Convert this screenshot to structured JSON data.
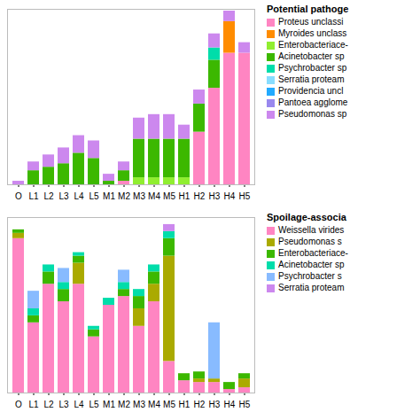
{
  "chart_data": [
    {
      "type": "bar",
      "stacked": true,
      "legend_title": "Potential pathoge",
      "legend": "right",
      "tick_labels": "x",
      "categories": [
        "O",
        "L1",
        "L2",
        "L3",
        "L4",
        "L5",
        "M1",
        "M2",
        "M3",
        "M4",
        "M5",
        "H1",
        "H2",
        "H3",
        "H4",
        "H5"
      ],
      "ylim": [
        0,
        1
      ],
      "series": [
        {
          "name": "Proteus unclassi",
          "color": "#FF85C2",
          "values": [
            0.0,
            0.0,
            0.0,
            0.0,
            0.0,
            0.0,
            0.0,
            0.02,
            0.0,
            0.0,
            0.0,
            0.0,
            0.3,
            0.55,
            0.75,
            0.75
          ]
        },
        {
          "name": "Myroides unclass",
          "color": "#FF8C00",
          "values": [
            0.0,
            0.0,
            0.0,
            0.0,
            0.0,
            0.0,
            0.0,
            0.0,
            0.0,
            0.0,
            0.0,
            0.0,
            0.0,
            0.0,
            0.18,
            0.0
          ]
        },
        {
          "name": "Enterobacteriace-",
          "color": "#90EE30",
          "values": [
            0.0,
            0.0,
            0.0,
            0.0,
            0.0,
            0.0,
            0.0,
            0.0,
            0.04,
            0.04,
            0.04,
            0.04,
            0.0,
            0.0,
            0.0,
            0.0
          ]
        },
        {
          "name": "Acinetobacter sp",
          "color": "#3CB800",
          "values": [
            0.0,
            0.08,
            0.1,
            0.12,
            0.18,
            0.15,
            0.02,
            0.06,
            0.22,
            0.22,
            0.22,
            0.22,
            0.16,
            0.16,
            0.0,
            0.0
          ]
        },
        {
          "name": "Psychrobacter sp",
          "color": "#00DDAA",
          "values": [
            0.0,
            0.0,
            0.0,
            0.0,
            0.0,
            0.0,
            0.0,
            0.0,
            0.0,
            0.0,
            0.0,
            0.0,
            0.0,
            0.07,
            0.0,
            0.0
          ]
        },
        {
          "name": "Serratia proteam",
          "color": "#88DDFF",
          "values": [
            0.0,
            0.0,
            0.0,
            0.0,
            0.0,
            0.0,
            0.0,
            0.0,
            0.0,
            0.0,
            0.0,
            0.0,
            0.0,
            0.0,
            0.0,
            0.0
          ]
        },
        {
          "name": "Providencia uncl",
          "color": "#22AAFF",
          "values": [
            0.0,
            0.0,
            0.0,
            0.0,
            0.0,
            0.0,
            0.0,
            0.0,
            0.0,
            0.0,
            0.0,
            0.0,
            0.0,
            0.0,
            0.0,
            0.0
          ]
        },
        {
          "name": "Pantoea agglome",
          "color": "#9988EE",
          "values": [
            0.0,
            0.0,
            0.0,
            0.0,
            0.0,
            0.0,
            0.0,
            0.0,
            0.0,
            0.0,
            0.0,
            0.0,
            0.0,
            0.0,
            0.0,
            0.0
          ]
        },
        {
          "name": "Pseudomonas sp",
          "color": "#CC88EE",
          "values": [
            0.02,
            0.05,
            0.07,
            0.09,
            0.1,
            0.1,
            0.04,
            0.05,
            0.12,
            0.14,
            0.14,
            0.08,
            0.08,
            0.08,
            0.06,
            0.06
          ]
        }
      ]
    },
    {
      "type": "bar",
      "stacked": true,
      "legend_title": "Spoilage-associa",
      "legend": "right",
      "tick_labels": "x",
      "categories": [
        "O",
        "L1",
        "L2",
        "L3",
        "L4",
        "L5",
        "M1",
        "M2",
        "M3",
        "M4",
        "M5",
        "H1",
        "H2",
        "H3",
        "H4",
        "H5"
      ],
      "ylim": [
        0,
        1
      ],
      "series": [
        {
          "name": "Weissella virides",
          "color": "#FF85C2",
          "values": [
            0.88,
            0.4,
            0.62,
            0.52,
            0.62,
            0.32,
            0.5,
            0.55,
            0.38,
            0.52,
            0.18,
            0.07,
            0.06,
            0.06,
            0.02,
            0.03
          ]
        },
        {
          "name": "Pseudomonas s",
          "color": "#AAAA00",
          "values": [
            0.03,
            0.0,
            0.0,
            0.0,
            0.12,
            0.0,
            0.0,
            0.0,
            0.1,
            0.1,
            0.6,
            0.0,
            0.02,
            0.02,
            0.0,
            0.05
          ]
        },
        {
          "name": "Enterobacteriace-",
          "color": "#3CB800",
          "values": [
            0.02,
            0.04,
            0.07,
            0.07,
            0.04,
            0.04,
            0.0,
            0.04,
            0.07,
            0.07,
            0.1,
            0.04,
            0.04,
            0.0,
            0.04,
            0.03
          ]
        },
        {
          "name": "Acinetobacter sp",
          "color": "#00DDAA",
          "values": [
            0.0,
            0.04,
            0.04,
            0.04,
            0.02,
            0.02,
            0.04,
            0.04,
            0.04,
            0.04,
            0.04,
            0.0,
            0.0,
            0.0,
            0.0,
            0.0
          ]
        },
        {
          "name": "Psychrobacter s",
          "color": "#88BBFF",
          "values": [
            0.0,
            0.1,
            0.0,
            0.08,
            0.0,
            0.0,
            0.0,
            0.07,
            0.0,
            0.0,
            0.0,
            0.0,
            0.0,
            0.32,
            0.0,
            0.0
          ]
        },
        {
          "name": "Serratia proteam",
          "color": "#CC88EE",
          "values": [
            0.0,
            0.0,
            0.0,
            0.0,
            0.0,
            0.0,
            0.0,
            0.0,
            0.0,
            0.0,
            0.04,
            0.0,
            0.0,
            0.0,
            0.0,
            0.0
          ]
        }
      ]
    }
  ]
}
